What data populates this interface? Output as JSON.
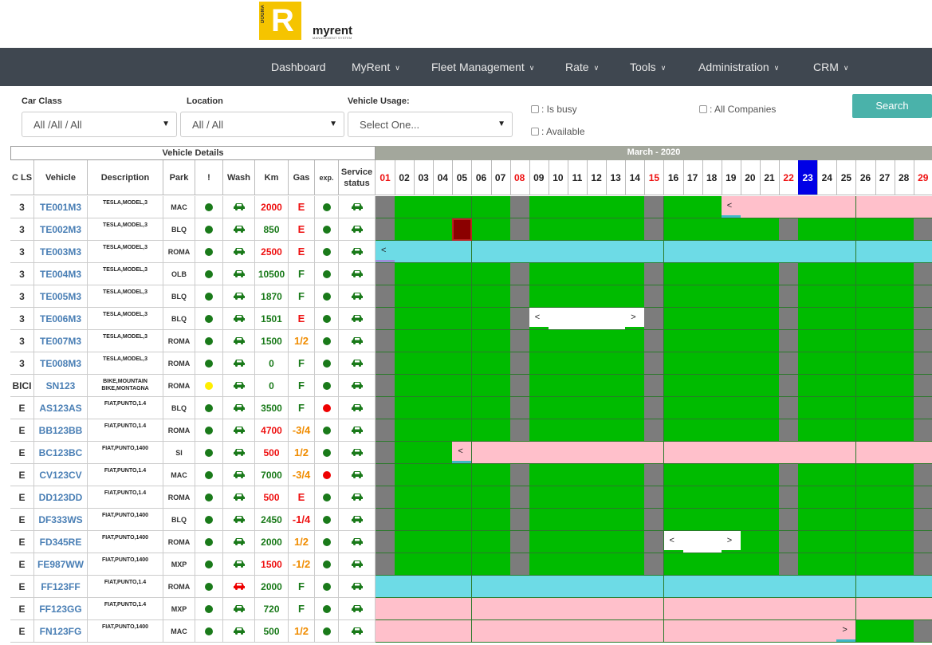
{
  "brand": {
    "logo_letter": "R",
    "logo_side_text": "DOGMA",
    "name": "myrent",
    "tagline": "MANAGEMENT SYSTEM",
    "logo_color": "#f5c400"
  },
  "nav": {
    "items": [
      {
        "label": "Dashboard",
        "has_dropdown": false
      },
      {
        "label": "MyRent",
        "has_dropdown": true
      },
      {
        "label": "Fleet Management",
        "has_dropdown": true
      },
      {
        "label": "Rate",
        "has_dropdown": true
      },
      {
        "label": "Tools",
        "has_dropdown": true
      },
      {
        "label": "Administration",
        "has_dropdown": true
      },
      {
        "label": "CRM",
        "has_dropdown": true
      }
    ]
  },
  "filters": {
    "car_class": {
      "label": "Car Class",
      "value": "All /All / All"
    },
    "location": {
      "label": "Location",
      "value": "All / All"
    },
    "vehicle_usage": {
      "label": "Vehicle Usage:",
      "value": "Select One..."
    },
    "is_busy": {
      "label": ": Is busy",
      "checked": false
    },
    "available": {
      "label": ": Available",
      "checked": false
    },
    "all_companies": {
      "label": ": All Companies",
      "checked": false
    },
    "search_label": "Search"
  },
  "table": {
    "section_title": "Vehicle Details",
    "calendar_month": "March",
    "calendar_year": "2020",
    "columns": [
      "C LS",
      "Vehicle",
      "Description",
      "Park",
      "!",
      "Wash",
      "Km",
      "Gas",
      "exp.",
      "Service status"
    ],
    "days": [
      "01",
      "02",
      "03",
      "04",
      "05",
      "06",
      "07",
      "08",
      "09",
      "10",
      "11",
      "12",
      "13",
      "14",
      "15",
      "16",
      "17",
      "18",
      "19",
      "20",
      "21",
      "22",
      "23",
      "24",
      "25",
      "26",
      "27",
      "28",
      "29"
    ],
    "red_days": [
      "01",
      "08",
      "15",
      "22",
      "29"
    ],
    "today": "23",
    "rows": [
      {
        "cls": "3",
        "vehicle": "TE001M3",
        "desc": "TESLA,MODEL,3",
        "park": "MAC",
        "alert": "green",
        "wash": "green",
        "km": "2000",
        "km_color": "red",
        "gas": "E",
        "gas_color": "red",
        "exp": "green",
        "service": "green"
      },
      {
        "cls": "3",
        "vehicle": "TE002M3",
        "desc": "TESLA,MODEL,3",
        "park": "BLQ",
        "alert": "green",
        "wash": "green",
        "km": "850",
        "km_color": "green",
        "gas": "E",
        "gas_color": "red",
        "exp": "green",
        "service": "green"
      },
      {
        "cls": "3",
        "vehicle": "TE003M3",
        "desc": "TESLA,MODEL,3",
        "park": "ROMA",
        "alert": "green",
        "wash": "green",
        "km": "2500",
        "km_color": "red",
        "gas": "E",
        "gas_color": "red",
        "exp": "green",
        "service": "green"
      },
      {
        "cls": "3",
        "vehicle": "TE004M3",
        "desc": "TESLA,MODEL,3",
        "park": "OLB",
        "alert": "green",
        "wash": "green",
        "km": "10500",
        "km_color": "green",
        "gas": "F",
        "gas_color": "green",
        "exp": "green",
        "service": "green"
      },
      {
        "cls": "3",
        "vehicle": "TE005M3",
        "desc": "TESLA,MODEL,3",
        "park": "BLQ",
        "alert": "green",
        "wash": "green",
        "km": "1870",
        "km_color": "green",
        "gas": "F",
        "gas_color": "green",
        "exp": "green",
        "service": "green"
      },
      {
        "cls": "3",
        "vehicle": "TE006M3",
        "desc": "TESLA,MODEL,3",
        "park": "BLQ",
        "alert": "green",
        "wash": "green",
        "km": "1501",
        "km_color": "green",
        "gas": "E",
        "gas_color": "red",
        "exp": "green",
        "service": "green"
      },
      {
        "cls": "3",
        "vehicle": "TE007M3",
        "desc": "TESLA,MODEL,3",
        "park": "ROMA",
        "alert": "green",
        "wash": "green",
        "km": "1500",
        "km_color": "green",
        "gas": "1/2",
        "gas_color": "orange",
        "exp": "green",
        "service": "green"
      },
      {
        "cls": "3",
        "vehicle": "TE008M3",
        "desc": "TESLA,MODEL,3",
        "park": "ROMA",
        "alert": "green",
        "wash": "green",
        "km": "0",
        "km_color": "green",
        "gas": "F",
        "gas_color": "green",
        "exp": "green",
        "service": "green"
      },
      {
        "cls": "BICI",
        "vehicle": "SN123",
        "desc": "BIKE,MOUNTAIN BIKE,MONTAGNA",
        "park": "ROMA",
        "alert": "yellow",
        "wash": "green",
        "km": "0",
        "km_color": "green",
        "gas": "F",
        "gas_color": "green",
        "exp": "green",
        "service": "green"
      },
      {
        "cls": "E",
        "vehicle": "AS123AS",
        "desc": "FIAT,PUNTO,1.4",
        "park": "BLQ",
        "alert": "green",
        "wash": "green",
        "km": "3500",
        "km_color": "green",
        "gas": "F",
        "gas_color": "green",
        "exp": "red",
        "service": "green"
      },
      {
        "cls": "E",
        "vehicle": "BB123BB",
        "desc": "FIAT,PUNTO,1.4",
        "park": "ROMA",
        "alert": "green",
        "wash": "green",
        "km": "4700",
        "km_color": "red",
        "gas": "-3/4",
        "gas_color": "orange",
        "exp": "green",
        "service": "green"
      },
      {
        "cls": "E",
        "vehicle": "BC123BC",
        "desc": "FIAT,PUNTO,1400",
        "park": "SI",
        "alert": "green",
        "wash": "green",
        "km": "500",
        "km_color": "red",
        "gas": "1/2",
        "gas_color": "orange",
        "exp": "green",
        "service": "green"
      },
      {
        "cls": "E",
        "vehicle": "CV123CV",
        "desc": "FIAT,PUNTO,1.4",
        "park": "MAC",
        "alert": "green",
        "wash": "green",
        "km": "7000",
        "km_color": "green",
        "gas": "-3/4",
        "gas_color": "orange",
        "exp": "red",
        "service": "green"
      },
      {
        "cls": "E",
        "vehicle": "DD123DD",
        "desc": "FIAT,PUNTO,1.4",
        "park": "ROMA",
        "alert": "green",
        "wash": "green",
        "km": "500",
        "km_color": "red",
        "gas": "E",
        "gas_color": "red",
        "exp": "green",
        "service": "green"
      },
      {
        "cls": "E",
        "vehicle": "DF333WS",
        "desc": "FIAT,PUNTO,1400",
        "park": "BLQ",
        "alert": "green",
        "wash": "green",
        "km": "2450",
        "km_color": "green",
        "gas": "-1/4",
        "gas_color": "red",
        "exp": "green",
        "service": "green"
      },
      {
        "cls": "E",
        "vehicle": "FD345RE",
        "desc": "FIAT,PUNTO,1400",
        "park": "ROMA",
        "alert": "green",
        "wash": "green",
        "km": "2000",
        "km_color": "green",
        "gas": "1/2",
        "gas_color": "orange",
        "exp": "green",
        "service": "green"
      },
      {
        "cls": "E",
        "vehicle": "FE987WW",
        "desc": "FIAT,PUNTO,1400",
        "park": "MXP",
        "alert": "green",
        "wash": "green",
        "km": "1500",
        "km_color": "red",
        "gas": "-1/2",
        "gas_color": "orange",
        "exp": "green",
        "service": "green"
      },
      {
        "cls": "E",
        "vehicle": "FF123FF",
        "desc": "FIAT,PUNTO,1.4",
        "park": "ROMA",
        "alert": "green",
        "wash": "red",
        "km": "2000",
        "km_color": "green",
        "gas": "F",
        "gas_color": "green",
        "exp": "green",
        "service": "green"
      },
      {
        "cls": "E",
        "vehicle": "FF123GG",
        "desc": "FIAT,PUNTO,1.4",
        "park": "MXP",
        "alert": "green",
        "wash": "green",
        "km": "720",
        "km_color": "green",
        "gas": "F",
        "gas_color": "green",
        "exp": "green",
        "service": "green"
      },
      {
        "cls": "E",
        "vehicle": "FN123FG",
        "desc": "FIAT,PUNTO,1400",
        "park": "MAC",
        "alert": "green",
        "wash": "green",
        "km": "500",
        "km_color": "green",
        "gas": "1/2",
        "gas_color": "orange",
        "exp": "green",
        "service": "green"
      }
    ]
  },
  "colors": {
    "available": "#00bb00",
    "weekend": "#7c7c7c",
    "busy_pink": "#ffc0cb",
    "busy_cyan": "#6ddbe6",
    "reserved_white": "#ffffff",
    "maintenance": "#8b0000",
    "nav_bg": "#3f4750",
    "search_btn": "#4ab2aa",
    "today": "#0000e6",
    "dot_green": "#1a7a1a",
    "dot_red": "#ee0000",
    "dot_yellow": "#ffee00"
  },
  "bookings": [
    {
      "row": 0,
      "from": "19",
      "to": "29",
      "kind": "pink",
      "start_marker": "<"
    },
    {
      "row": 1,
      "from": "05",
      "to": "05",
      "kind": "maint"
    },
    {
      "row": 2,
      "from": "01",
      "to": "29",
      "kind": "cyan",
      "start_marker": "<"
    },
    {
      "row": 5,
      "from": "09",
      "to": "14",
      "kind": "white",
      "start_marker": "<",
      "end_marker": ">"
    },
    {
      "row": 11,
      "from": "05",
      "to": "29",
      "kind": "pink",
      "start_marker": "<"
    },
    {
      "row": 15,
      "from": "16",
      "to": "19",
      "kind": "white",
      "start_marker": "<",
      "end_marker": ">"
    },
    {
      "row": 17,
      "from": "01",
      "to": "29",
      "kind": "cyan"
    },
    {
      "row": 18,
      "from": "01",
      "to": "29",
      "kind": "pink"
    },
    {
      "row": 19,
      "from": "01",
      "to": "25",
      "kind": "pink",
      "end_marker": ">"
    }
  ]
}
